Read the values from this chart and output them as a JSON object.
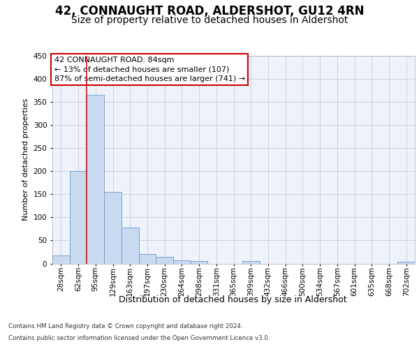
{
  "title": "42, CONNAUGHT ROAD, ALDERSHOT, GU12 4RN",
  "subtitle": "Size of property relative to detached houses in Aldershot",
  "xlabel": "Distribution of detached houses by size in Aldershot",
  "ylabel": "Number of detached properties",
  "categories": [
    "28sqm",
    "62sqm",
    "95sqm",
    "129sqm",
    "163sqm",
    "197sqm",
    "230sqm",
    "264sqm",
    "298sqm",
    "331sqm",
    "365sqm",
    "399sqm",
    "432sqm",
    "466sqm",
    "500sqm",
    "534sqm",
    "567sqm",
    "601sqm",
    "635sqm",
    "668sqm",
    "702sqm"
  ],
  "values": [
    18,
    201,
    366,
    155,
    78,
    21,
    14,
    7,
    5,
    0,
    0,
    5,
    0,
    0,
    0,
    0,
    0,
    0,
    0,
    0,
    4
  ],
  "bar_color": "#c9daf0",
  "bar_edge_color": "#6699cc",
  "red_line_x": 1.5,
  "annotation_line1": "42 CONNAUGHT ROAD: 84sqm",
  "annotation_line2": "← 13% of detached houses are smaller (107)",
  "annotation_line3": "87% of semi-detached houses are larger (741) →",
  "annotation_box_color": "#ffffff",
  "annotation_box_edge": "#cc0000",
  "ylim": [
    0,
    450
  ],
  "yticks": [
    0,
    50,
    100,
    150,
    200,
    250,
    300,
    350,
    400,
    450
  ],
  "footer_line1": "Contains HM Land Registry data © Crown copyright and database right 2024.",
  "footer_line2": "Contains public sector information licensed under the Open Government Licence v3.0.",
  "background_color": "#eef2fb",
  "grid_color": "#ccccdd",
  "title_fontsize": 12,
  "subtitle_fontsize": 10,
  "ylabel_fontsize": 8,
  "xlabel_fontsize": 9,
  "tick_fontsize": 7.5,
  "annotation_fontsize": 8
}
